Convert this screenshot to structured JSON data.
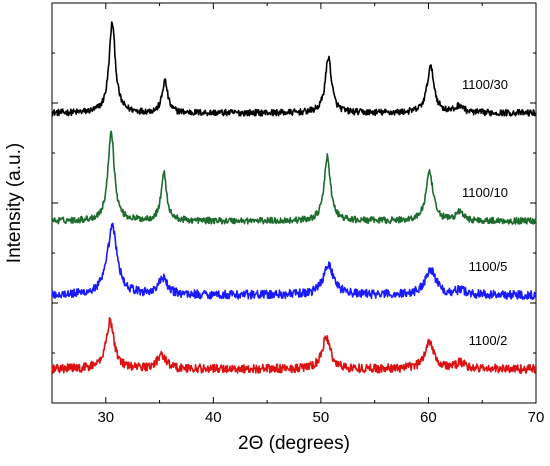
{
  "chart_data": {
    "type": "line",
    "xlabel": "2Θ (degrees)",
    "ylabel": "Intensity (a.u.)",
    "xlim": [
      25,
      70
    ],
    "xticks": [
      30,
      40,
      50,
      60,
      70
    ],
    "ylim": [
      0,
      1
    ],
    "yticks": "unlabeled",
    "grid": false,
    "series": [
      {
        "name": "1100/30",
        "color": "#000000",
        "baseline": 0.725,
        "noise": 0.008,
        "peaks": [
          {
            "x": 30.6,
            "height": 0.225,
            "width": 0.35
          },
          {
            "x": 35.5,
            "height": 0.08,
            "width": 0.3
          },
          {
            "x": 50.7,
            "height": 0.14,
            "width": 0.35
          },
          {
            "x": 60.2,
            "height": 0.115,
            "width": 0.4
          },
          {
            "x": 62.9,
            "height": 0.018,
            "width": 0.4
          }
        ]
      },
      {
        "name": "1100/10",
        "color": "#1e6b2e",
        "baseline": 0.455,
        "noise": 0.008,
        "peaks": [
          {
            "x": 30.5,
            "height": 0.225,
            "width": 0.35
          },
          {
            "x": 35.4,
            "height": 0.12,
            "width": 0.3
          },
          {
            "x": 50.6,
            "height": 0.16,
            "width": 0.35
          },
          {
            "x": 60.1,
            "height": 0.12,
            "width": 0.4
          },
          {
            "x": 62.9,
            "height": 0.022,
            "width": 0.4
          }
        ]
      },
      {
        "name": "1100/5",
        "color": "#1a1aff",
        "baseline": 0.27,
        "noise": 0.011,
        "peaks": [
          {
            "x": 30.6,
            "height": 0.17,
            "width": 0.55
          },
          {
            "x": 35.3,
            "height": 0.04,
            "width": 0.5
          },
          {
            "x": 50.7,
            "height": 0.075,
            "width": 0.6
          },
          {
            "x": 60.2,
            "height": 0.065,
            "width": 0.6
          },
          {
            "x": 63.0,
            "height": 0.012,
            "width": 0.5
          }
        ]
      },
      {
        "name": "1100/2",
        "color": "#dd1111",
        "baseline": 0.085,
        "noise": 0.011,
        "peaks": [
          {
            "x": 30.4,
            "height": 0.12,
            "width": 0.45
          },
          {
            "x": 35.2,
            "height": 0.035,
            "width": 0.5
          },
          {
            "x": 50.5,
            "height": 0.08,
            "width": 0.45
          },
          {
            "x": 60.1,
            "height": 0.07,
            "width": 0.5
          },
          {
            "x": 63.0,
            "height": 0.015,
            "width": 0.5
          }
        ]
      }
    ]
  }
}
